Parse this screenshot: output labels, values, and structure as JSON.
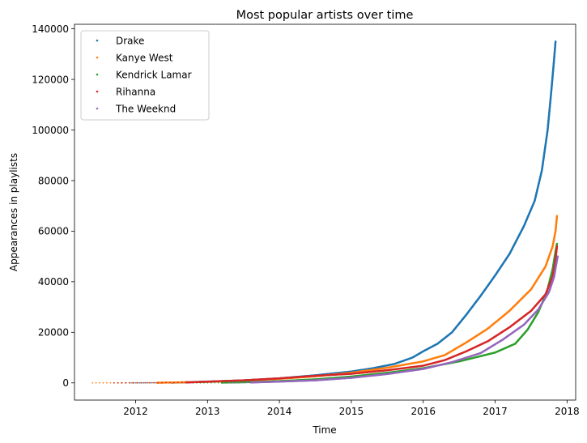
{
  "chart_data": {
    "type": "scatter",
    "title": "Most popular artists over time",
    "xlabel": "Time",
    "ylabel": "Appearances in playlists",
    "xlim": [
      2011.15,
      2018.12
    ],
    "ylim": [
      -6800,
      141800
    ],
    "x_ticks": [
      2012,
      2013,
      2014,
      2015,
      2016,
      2017,
      2018
    ],
    "y_ticks": [
      0,
      20000,
      40000,
      60000,
      80000,
      100000,
      120000,
      140000
    ],
    "grid": false,
    "legend_position": "upper-left",
    "series": [
      {
        "name": "Drake",
        "color": "#1f77b4",
        "points": [
          [
            2011.95,
            0
          ],
          [
            2012.5,
            80
          ],
          [
            2013.0,
            500
          ],
          [
            2013.5,
            1000
          ],
          [
            2014.0,
            1800
          ],
          [
            2014.5,
            3000
          ],
          [
            2015.0,
            4500
          ],
          [
            2015.3,
            5800
          ],
          [
            2015.6,
            7500
          ],
          [
            2015.85,
            10000
          ],
          [
            2016.0,
            12500
          ],
          [
            2016.2,
            15500
          ],
          [
            2016.4,
            20000
          ],
          [
            2016.6,
            27000
          ],
          [
            2016.8,
            34500
          ],
          [
            2017.0,
            42500
          ],
          [
            2017.2,
            51000
          ],
          [
            2017.4,
            62000
          ],
          [
            2017.55,
            72000
          ],
          [
            2017.65,
            84000
          ],
          [
            2017.73,
            100000
          ],
          [
            2017.78,
            115000
          ],
          [
            2017.82,
            128000
          ],
          [
            2017.84,
            135000
          ]
        ]
      },
      {
        "name": "Kanye West",
        "color": "#ff7f0e",
        "points": [
          [
            2011.4,
            0
          ],
          [
            2011.8,
            10
          ],
          [
            2012.3,
            60
          ],
          [
            2013.0,
            400
          ],
          [
            2013.5,
            900
          ],
          [
            2014.0,
            1600
          ],
          [
            2014.5,
            2600
          ],
          [
            2015.0,
            4000
          ],
          [
            2015.5,
            6000
          ],
          [
            2016.0,
            8500
          ],
          [
            2016.3,
            11000
          ],
          [
            2016.6,
            16000
          ],
          [
            2016.9,
            21500
          ],
          [
            2017.2,
            28500
          ],
          [
            2017.5,
            37000
          ],
          [
            2017.7,
            46000
          ],
          [
            2017.8,
            54000
          ],
          [
            2017.84,
            60000
          ],
          [
            2017.86,
            66000
          ]
        ]
      },
      {
        "name": "Kendrick Lamar",
        "color": "#2ca02c",
        "points": [
          [
            2012.8,
            0
          ],
          [
            2013.2,
            100
          ],
          [
            2013.6,
            300
          ],
          [
            2014.0,
            700
          ],
          [
            2014.5,
            1400
          ],
          [
            2015.0,
            2500
          ],
          [
            2015.5,
            4000
          ],
          [
            2016.0,
            5800
          ],
          [
            2016.5,
            8500
          ],
          [
            2017.0,
            12000
          ],
          [
            2017.28,
            15500
          ],
          [
            2017.45,
            21000
          ],
          [
            2017.6,
            28000
          ],
          [
            2017.72,
            36000
          ],
          [
            2017.8,
            45000
          ],
          [
            2017.84,
            52000
          ],
          [
            2017.86,
            55000
          ]
        ]
      },
      {
        "name": "Rihanna",
        "color": "#d62728",
        "points": [
          [
            2011.7,
            0
          ],
          [
            2012.2,
            30
          ],
          [
            2012.7,
            150
          ],
          [
            2013.0,
            500
          ],
          [
            2013.5,
            1000
          ],
          [
            2014.0,
            1800
          ],
          [
            2014.5,
            2800
          ],
          [
            2015.0,
            3600
          ],
          [
            2015.5,
            5000
          ],
          [
            2016.0,
            6800
          ],
          [
            2016.3,
            9000
          ],
          [
            2016.6,
            12500
          ],
          [
            2016.9,
            16500
          ],
          [
            2017.2,
            22000
          ],
          [
            2017.5,
            28500
          ],
          [
            2017.7,
            35000
          ],
          [
            2017.8,
            42000
          ],
          [
            2017.84,
            49000
          ],
          [
            2017.86,
            54000
          ]
        ]
      },
      {
        "name": "The Weeknd",
        "color": "#9467bd",
        "points": [
          [
            2013.3,
            0
          ],
          [
            2013.6,
            150
          ],
          [
            2014.0,
            500
          ],
          [
            2014.5,
            1000
          ],
          [
            2015.0,
            2000
          ],
          [
            2015.5,
            3500
          ],
          [
            2016.0,
            5500
          ],
          [
            2016.4,
            8200
          ],
          [
            2016.8,
            11800
          ],
          [
            2017.1,
            17000
          ],
          [
            2017.4,
            23000
          ],
          [
            2017.6,
            29000
          ],
          [
            2017.75,
            36000
          ],
          [
            2017.82,
            42000
          ],
          [
            2017.85,
            47000
          ],
          [
            2017.87,
            50000
          ]
        ]
      }
    ]
  }
}
